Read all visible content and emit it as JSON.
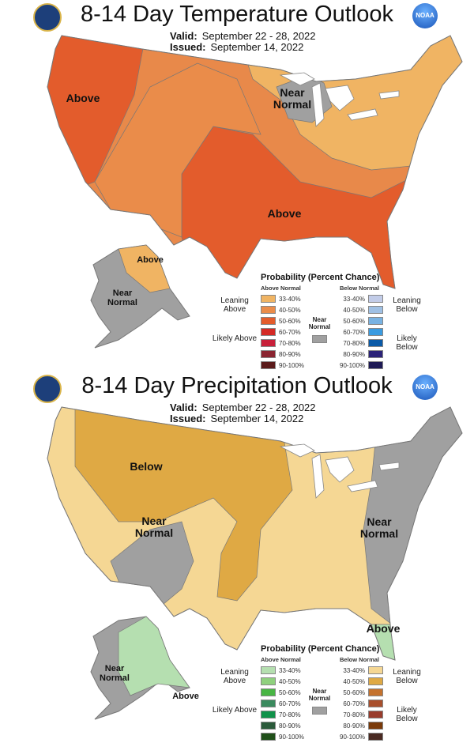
{
  "panels": [
    {
      "title": "8-14 Day Temperature Outlook",
      "valid_label": "Valid:",
      "valid": "September 22 - 28, 2022",
      "issued_label": "Issued:",
      "issued": "September 14, 2022",
      "map_labels": [
        "Above",
        "Near Normal",
        "Above",
        "Above",
        "Near Normal"
      ],
      "legend": {
        "title": "Probability (Percent Chance)",
        "above_header": "Above Normal",
        "below_header": "Below Normal",
        "near": "Near Normal",
        "ranges": [
          "33-40%",
          "40-50%",
          "50-60%",
          "60-70%",
          "70-80%",
          "80-90%",
          "90-100%"
        ],
        "above_colors": [
          "#f0b463",
          "#ea8c4a",
          "#e35c2c",
          "#d42a25",
          "#c8203a",
          "#8a2430",
          "#5a1a1a"
        ],
        "below_colors": [
          "#c2cce8",
          "#9fc0e4",
          "#78b2e2",
          "#3a9be0",
          "#0a5aa8",
          "#2b2378",
          "#1e1a55"
        ],
        "near_color": "#a0a0a0",
        "leaning_above": "Leaning Above",
        "likely_above": "Likely Above",
        "leaning_below": "Leaning Below",
        "likely_below": "Likely Below"
      }
    },
    {
      "title": "8-14 Day Precipitation Outlook",
      "valid_label": "Valid:",
      "valid": "September 22 - 28, 2022",
      "issued_label": "Issued:",
      "issued": "September 14, 2022",
      "map_labels": [
        "Below",
        "Near Normal",
        "Near Normal",
        "Above",
        "Near Normal",
        "Above"
      ],
      "legend": {
        "title": "Probability (Percent Chance)",
        "above_header": "Above Normal",
        "below_header": "Below Normal",
        "near": "Near Normal",
        "ranges": [
          "33-40%",
          "40-50%",
          "50-60%",
          "60-70%",
          "70-80%",
          "80-90%",
          "90-100%"
        ],
        "above_colors": [
          "#b5dfb0",
          "#8fd07e",
          "#48b544",
          "#3a8a5e",
          "#10924a",
          "#2a5a3a",
          "#20501a"
        ],
        "below_colors": [
          "#f5d794",
          "#dfa944",
          "#c4722e",
          "#a84f2c",
          "#993c2c",
          "#7a3a0a",
          "#4a2a22"
        ],
        "near_color": "#a0a0a0",
        "leaning_above": "Leaning Above",
        "likely_above": "Likely Above",
        "leaning_below": "Leaning Below",
        "likely_below": "Likely Below"
      }
    }
  ]
}
